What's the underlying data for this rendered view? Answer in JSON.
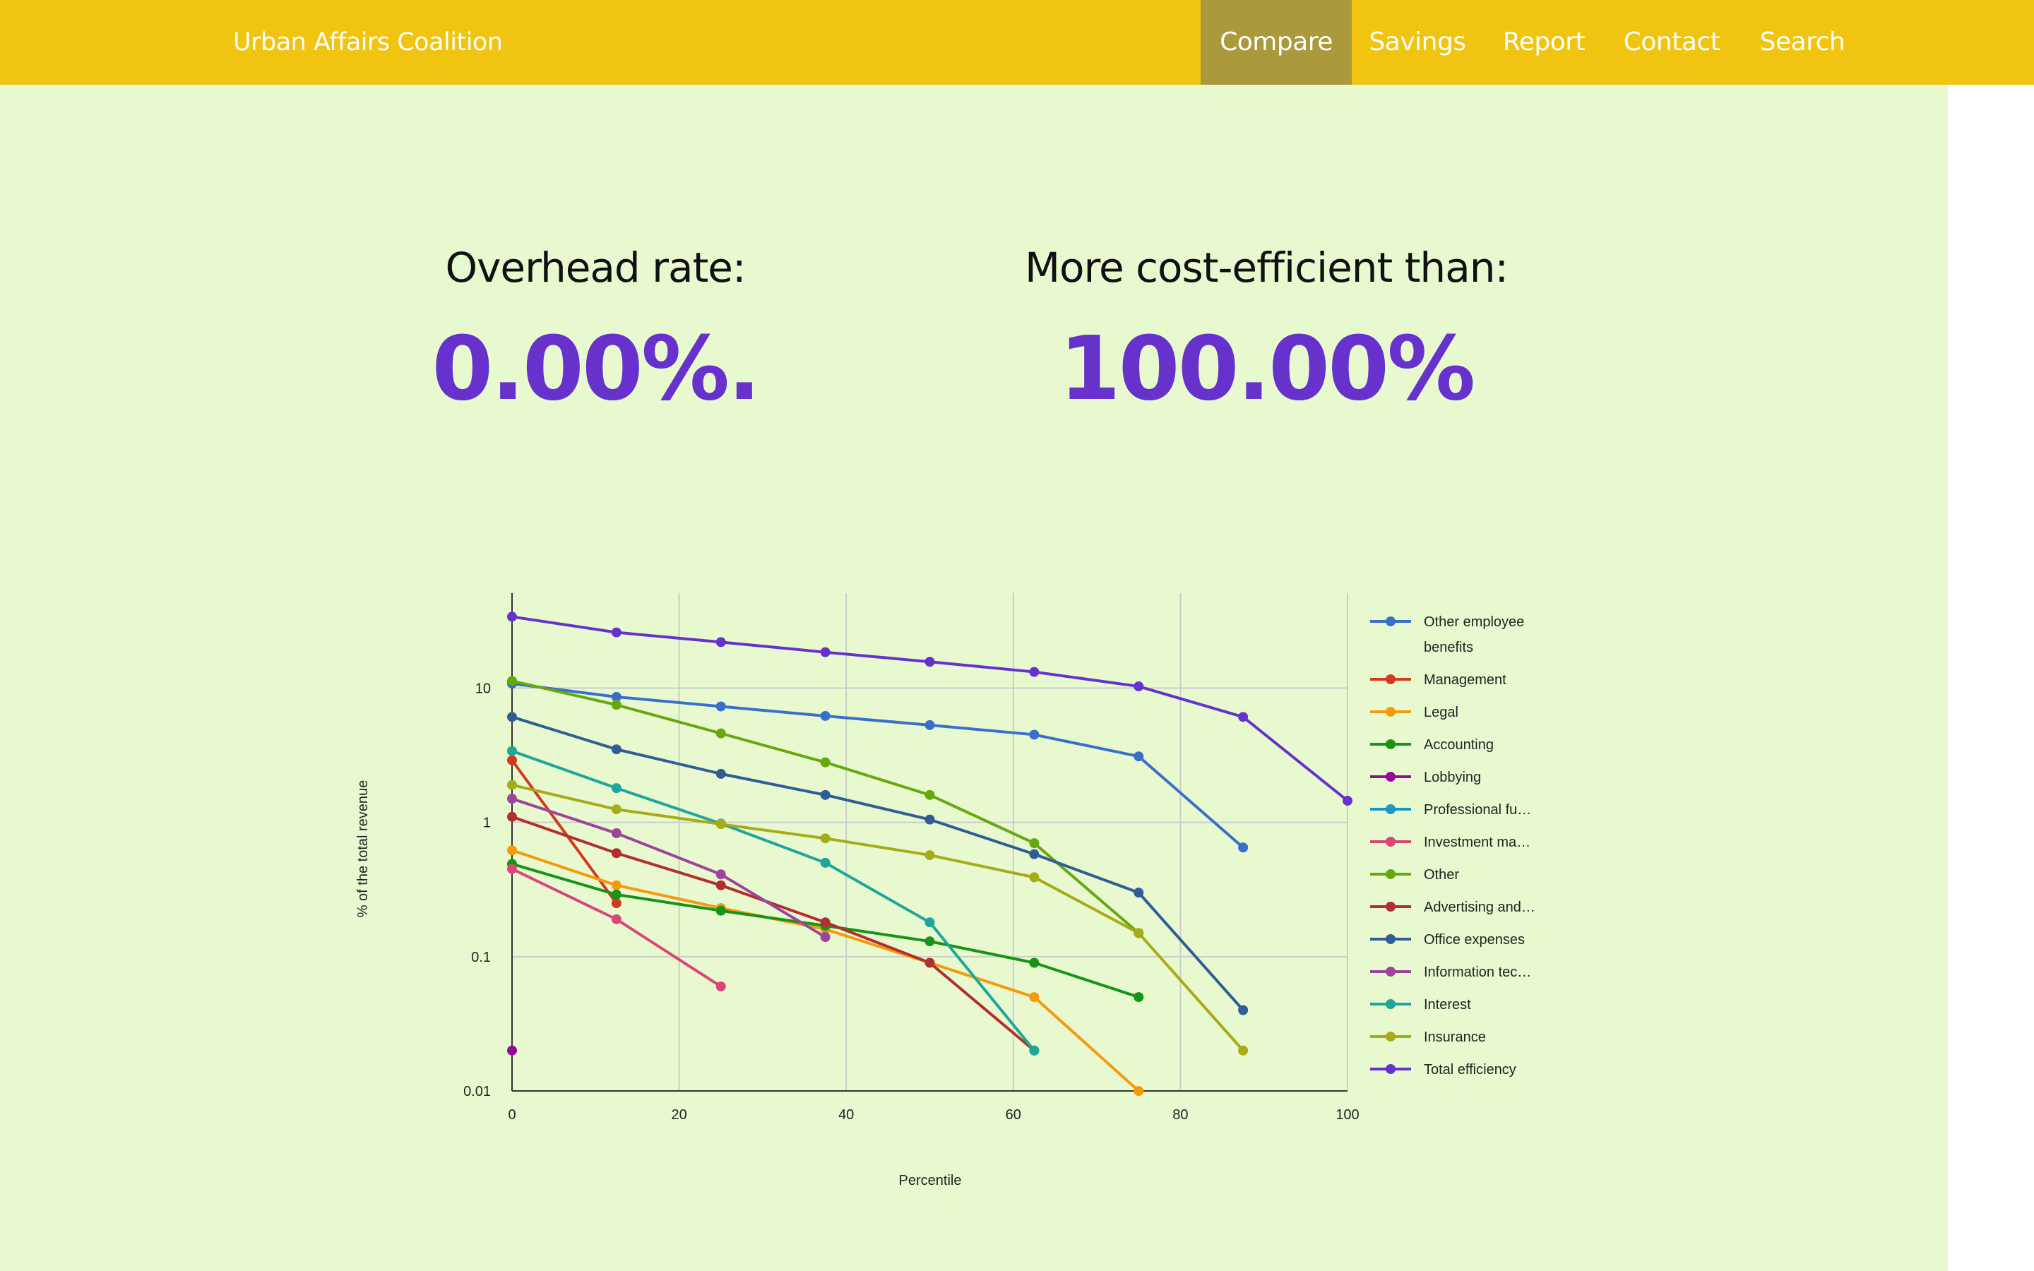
{
  "nav": {
    "brand": "Urban Affairs Coalition",
    "items": [
      "Compare",
      "Savings",
      "Report",
      "Contact",
      "Search"
    ],
    "active": "Compare"
  },
  "stats": {
    "overhead_label": "Overhead rate:",
    "overhead_value": "0.00%.",
    "efficiency_label": "More cost-efficient than:",
    "efficiency_value": "100.00%"
  },
  "colors": {
    "navbar": "#f0c410",
    "nav_active": "#ab9a3c",
    "page_bg": "#e8f9d0",
    "accent": "#6732cc"
  },
  "chart_data": {
    "type": "line",
    "xlabel": "Percentile",
    "ylabel": "% of the total revenue",
    "y_scale": "log",
    "xlim": [
      0,
      100
    ],
    "ylim": [
      0.01,
      40
    ],
    "x_ticks": [
      "0",
      "20",
      "40",
      "60",
      "80",
      "100"
    ],
    "y_ticks": [
      "0.01",
      "0.1",
      "1",
      "10"
    ],
    "grid": true,
    "legend_position": "right",
    "series": [
      {
        "name": "Other employee benefits",
        "color": "#3a6fc9",
        "x": [
          0,
          12.5,
          25,
          37.5,
          50,
          62.5,
          75,
          87.5
        ],
        "y": [
          10.8,
          8.6,
          7.3,
          6.2,
          5.3,
          4.5,
          3.1,
          0.65
        ]
      },
      {
        "name": "Management",
        "color": "#d23a1d",
        "x": [
          0,
          12.5
        ],
        "y": [
          2.9,
          0.25
        ]
      },
      {
        "name": "Legal",
        "color": "#f59a0d",
        "x": [
          0,
          12.5,
          25,
          37.5,
          50,
          62.5,
          75
        ],
        "y": [
          0.62,
          0.34,
          0.23,
          0.16,
          0.09,
          0.05,
          0.01
        ]
      },
      {
        "name": "Accounting",
        "color": "#179317",
        "x": [
          0,
          12.5,
          25,
          37.5,
          50,
          62.5,
          75
        ],
        "y": [
          0.49,
          0.29,
          0.22,
          0.17,
          0.13,
          0.09,
          0.05
        ]
      },
      {
        "name": "Lobbying",
        "color": "#960b96",
        "x": [
          0
        ],
        "y": [
          0.02
        ]
      },
      {
        "name": "Professional fu…",
        "color": "#1a97c2",
        "x": [],
        "y": []
      },
      {
        "name": "Investment ma…",
        "color": "#da4677",
        "x": [
          0,
          12.5,
          25
        ],
        "y": [
          0.45,
          0.19,
          0.06
        ]
      },
      {
        "name": "Other",
        "color": "#66a80e",
        "x": [
          0,
          12.5,
          25,
          37.5,
          50,
          62.5,
          75
        ],
        "y": [
          11.3,
          7.5,
          4.6,
          2.8,
          1.6,
          0.7,
          0.15
        ]
      },
      {
        "name": "Advertising and…",
        "color": "#b22f2f",
        "x": [
          0,
          12.5,
          25,
          37.5,
          50,
          62.5
        ],
        "y": [
          1.1,
          0.59,
          0.34,
          0.18,
          0.09,
          0.02
        ]
      },
      {
        "name": "Office expenses",
        "color": "#2f5d94",
        "x": [
          0,
          12.5,
          25,
          37.5,
          50,
          62.5,
          75,
          87.5
        ],
        "y": [
          6.1,
          3.5,
          2.3,
          1.6,
          1.05,
          0.58,
          0.3,
          0.04
        ]
      },
      {
        "name": "Information tec…",
        "color": "#9b459b",
        "x": [
          0,
          12.5,
          25,
          37.5
        ],
        "y": [
          1.5,
          0.83,
          0.41,
          0.14
        ]
      },
      {
        "name": "Interest",
        "color": "#1fa69b",
        "x": [
          0,
          12.5,
          25,
          37.5,
          50,
          62.5
        ],
        "y": [
          3.4,
          1.8,
          0.98,
          0.5,
          0.18,
          0.02
        ]
      },
      {
        "name": "Insurance",
        "color": "#a8ab18",
        "x": [
          0,
          12.5,
          25,
          37.5,
          50,
          62.5,
          75,
          87.5
        ],
        "y": [
          1.9,
          1.25,
          0.97,
          0.76,
          0.57,
          0.39,
          0.15,
          0.02
        ]
      },
      {
        "name": "Total efficiency",
        "color": "#6732cc",
        "x": [
          0,
          12.5,
          25,
          37.5,
          50,
          62.5,
          75,
          87.5,
          100
        ],
        "y": [
          34,
          26,
          22,
          18.5,
          15.7,
          13.2,
          10.3,
          6.1,
          1.45
        ]
      }
    ]
  }
}
